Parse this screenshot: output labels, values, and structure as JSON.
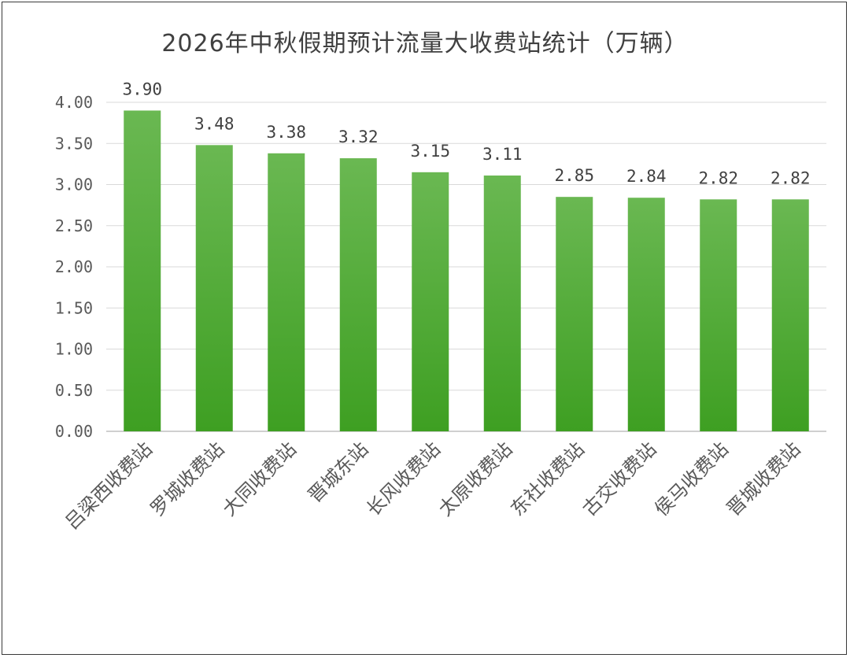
{
  "chart_data": {
    "type": "bar",
    "title": "2026年中秋假期预计流量大收费站统计（万辆）",
    "categories": [
      "吕梁西收费站",
      "罗城收费站",
      "大同收费站",
      "晋城东站",
      "长风收费站",
      "太原收费站",
      "东社收费站",
      "古交收费站",
      "侯马收费站",
      "晋城收费站"
    ],
    "values": [
      3.9,
      3.48,
      3.38,
      3.32,
      3.15,
      3.11,
      2.85,
      2.84,
      2.82,
      2.82
    ],
    "value_labels": [
      "3.90",
      "3.48",
      "3.38",
      "3.32",
      "3.15",
      "3.11",
      "2.85",
      "2.84",
      "2.82",
      "2.82"
    ],
    "yticks": [
      "0.00",
      "0.50",
      "1.00",
      "1.50",
      "2.00",
      "2.50",
      "3.00",
      "3.50",
      "4.00"
    ],
    "ylim": [
      0,
      4
    ],
    "grid": true,
    "legend": "none",
    "bar_color_top": "#6ab852",
    "bar_color_bottom": "#3e9f22",
    "grid_color": "#d9d9d9"
  }
}
